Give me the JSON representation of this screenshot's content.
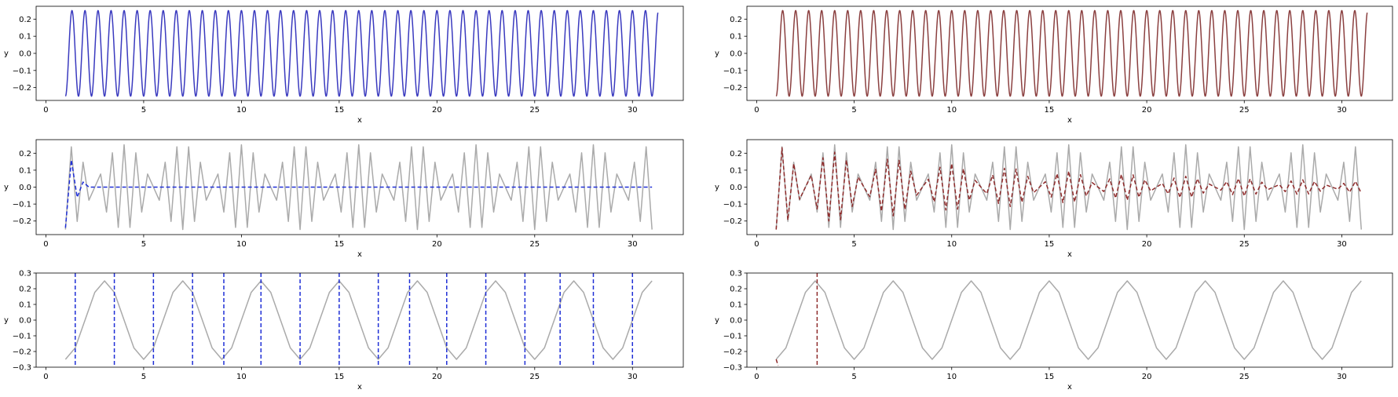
{
  "colors": {
    "blue_line": "#3a3abf",
    "brown_line": "#8b4040",
    "gray_line": "#aaaaaa",
    "blue_dash": "#1f2fd6",
    "brown_dash": "#8e2b2b"
  },
  "chart_data": [
    {
      "type": "line",
      "xlabel": "x",
      "ylabel": "y",
      "xlim": [
        -0.5,
        32.6
      ],
      "ylim": [
        -0.275,
        0.275
      ],
      "xticks": [
        0,
        5,
        10,
        15,
        20,
        25,
        30
      ],
      "yticks": [
        -0.2,
        -0.1,
        0.0,
        0.1,
        0.2
      ],
      "series": [
        {
          "kind": "sine",
          "amplitude": 0.25,
          "cycles_per_unit": 1.5,
          "phase_deg": 90,
          "sign": -1,
          "x_start": 1.0,
          "x_end": 31.3,
          "color": "#3a3abf",
          "style": "solid"
        }
      ]
    },
    {
      "type": "line",
      "xlabel": "x",
      "ylabel": "y",
      "xlim": [
        -0.5,
        32.6
      ],
      "ylim": [
        -0.275,
        0.275
      ],
      "xticks": [
        0,
        5,
        10,
        15,
        20,
        25,
        30
      ],
      "yticks": [
        -0.2,
        -0.1,
        0.0,
        0.1,
        0.2
      ],
      "series": [
        {
          "kind": "sine",
          "amplitude": 0.25,
          "cycles_per_unit": 1.5,
          "phase_deg": 90,
          "sign": -1,
          "x_start": 1.0,
          "x_end": 31.3,
          "color": "#8b4040",
          "style": "solid"
        }
      ]
    },
    {
      "type": "line",
      "xlabel": "x",
      "ylabel": "y",
      "xlim": [
        -0.5,
        32.6
      ],
      "ylim": [
        -0.28,
        0.28
      ],
      "xticks": [
        0,
        5,
        10,
        15,
        20,
        25,
        30
      ],
      "yticks": [
        -0.2,
        -0.1,
        0.0,
        0.1,
        0.2
      ],
      "series": [
        {
          "kind": "sampled",
          "amplitude": 0.25,
          "cycles_per_unit": 1.5,
          "phase_deg": 90,
          "sign": -1,
          "x_start": 1.0,
          "x_end": 31.0,
          "step": 0.3,
          "color": "#aaaaaa",
          "style": "solid"
        },
        {
          "kind": "decay",
          "x": [
            1.0,
            1.3,
            1.6,
            1.9,
            2.2,
            2.5,
            31.0
          ],
          "y": [
            -0.24,
            0.16,
            -0.06,
            0.03,
            0.0,
            0.0,
            0.0
          ],
          "color": "#1f2fd6",
          "style": "dashed"
        }
      ]
    },
    {
      "type": "line",
      "xlabel": "x",
      "ylabel": "y",
      "xlim": [
        -0.5,
        32.6
      ],
      "ylim": [
        -0.28,
        0.28
      ],
      "xticks": [
        0,
        5,
        10,
        15,
        20,
        25,
        30
      ],
      "yticks": [
        -0.2,
        -0.1,
        0.0,
        0.1,
        0.2
      ],
      "series": [
        {
          "kind": "sampled",
          "amplitude": 0.25,
          "cycles_per_unit": 1.5,
          "phase_deg": 90,
          "sign": -1,
          "x_start": 1.0,
          "x_end": 31.0,
          "step": 0.3,
          "color": "#aaaaaa",
          "style": "solid"
        },
        {
          "kind": "damped",
          "amplitude": 0.25,
          "cycles_per_unit": 1.5,
          "phase_deg": 90,
          "sign": -1,
          "x_start": 1.0,
          "x_end": 31.0,
          "step": 0.3,
          "decay": 0.065,
          "floor": 0.02,
          "color": "#8e2b2b",
          "style": "dashed"
        }
      ]
    },
    {
      "type": "line",
      "xlabel": "x",
      "ylabel": "y",
      "xlim": [
        -0.5,
        32.6
      ],
      "ylim": [
        -0.3,
        0.3
      ],
      "xticks": [
        0,
        5,
        10,
        15,
        20,
        25,
        30
      ],
      "yticks": [
        -0.3,
        -0.2,
        -0.1,
        0.0,
        0.1,
        0.2,
        0.3
      ],
      "series": [
        {
          "kind": "sampled",
          "amplitude": 0.25,
          "cycles_per_unit": 0.25,
          "phase_deg": 90,
          "sign": -1,
          "x_start": 1.0,
          "x_end": 31.0,
          "step": 0.5,
          "color": "#aaaaaa",
          "style": "solid"
        }
      ],
      "vlines": {
        "x": [
          1.5,
          3.5,
          5.5,
          7.5,
          9.1,
          11.0,
          13.0,
          15.0,
          17.0,
          18.6,
          20.5,
          22.5,
          24.5,
          26.3,
          28.0,
          30.0
        ],
        "color": "#1f2fd6",
        "style": "dashed"
      }
    },
    {
      "type": "line",
      "xlabel": "x",
      "ylabel": "y",
      "xlim": [
        -0.5,
        32.6
      ],
      "ylim": [
        -0.3,
        0.3
      ],
      "xticks": [
        0,
        5,
        10,
        15,
        20,
        25,
        30
      ],
      "yticks": [
        -0.3,
        -0.2,
        -0.1,
        0.0,
        0.1,
        0.2,
        0.3
      ],
      "series": [
        {
          "kind": "sampled",
          "amplitude": 0.25,
          "cycles_per_unit": 0.25,
          "phase_deg": 90,
          "sign": -1,
          "x_start": 1.0,
          "x_end": 31.0,
          "step": 0.5,
          "color": "#aaaaaa",
          "style": "solid"
        },
        {
          "kind": "decay",
          "x": [
            1.0,
            1.1
          ],
          "y": [
            -0.25,
            -0.29
          ],
          "color": "#8e2b2b",
          "style": "dashed"
        }
      ],
      "vlines": {
        "x": [
          3.1
        ],
        "color": "#8e2b2b",
        "style": "dashed"
      }
    }
  ]
}
